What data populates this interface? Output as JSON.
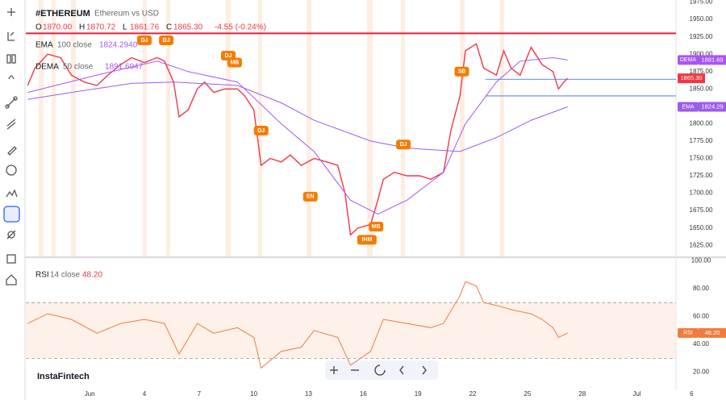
{
  "watermark": "InstaFintech",
  "chart_data": [
    {
      "type": "line",
      "title": "#ETHEREUM",
      "subtitle": "Ethereum vs USD",
      "ohlc": [
        {
          "key": "O",
          "value": "1870.00"
        },
        {
          "key": "H",
          "value": "1870.72"
        },
        {
          "key": "L",
          "value": "1861.76"
        },
        {
          "key": "C",
          "value": "1865.30"
        }
      ],
      "change": "-4.55 (-0.24%)",
      "xlim": [
        -2.5,
        35.0
      ],
      "ylim": [
        1609,
        1978
      ],
      "yticks": [
        {
          "value": 1625,
          "label": "1625.00"
        },
        {
          "value": 1650,
          "label": "1650.00"
        },
        {
          "value": 1675,
          "label": "1675.00"
        },
        {
          "value": 1700,
          "label": "1700.00"
        },
        {
          "value": 1725,
          "label": "1725.00"
        },
        {
          "value": 1750,
          "label": "1750.00"
        },
        {
          "value": 1775,
          "label": "1775.00"
        },
        {
          "value": 1800,
          "label": "1800.00"
        },
        {
          "value": 1825,
          "label": "1825.00"
        },
        {
          "value": 1850,
          "label": "1850.00"
        },
        {
          "value": 1875,
          "label": "1875.00"
        },
        {
          "value": 1900,
          "label": "1900.00"
        },
        {
          "value": 1925,
          "label": "1925.00"
        },
        {
          "value": 1950,
          "label": "1950.00"
        },
        {
          "value": 1975,
          "label": "1975.00"
        }
      ],
      "series": [
        {
          "color": "#f23645",
          "last_label": "1865.30",
          "x": [
            -2.4,
            -2.0,
            -1.3,
            -0.6,
            0.0,
            0.7,
            1.4,
            2.0,
            2.7,
            3.3,
            4.0,
            4.7,
            5.1,
            5.6,
            5.9,
            6.4,
            6.9,
            7.3,
            7.8,
            8.4,
            9.1,
            9.5,
            10.0,
            10.4,
            10.9,
            11.5,
            12.0,
            12.6,
            13.3,
            14.0,
            14.6,
            15.0,
            15.3,
            15.7,
            16.4,
            16.8,
            17.1,
            17.7,
            18.4,
            19.1,
            19.7,
            20.4,
            20.8,
            21.3,
            21.6,
            22.2,
            22.6,
            23.3,
            23.7,
            24.1,
            24.6,
            25.2,
            25.8,
            26.4,
            26.7,
            27.0,
            27.2
          ],
          "values": [
            1855,
            1880,
            1900,
            1895,
            1870,
            1860,
            1855,
            1870,
            1885,
            1895,
            1888,
            1895,
            1890,
            1860,
            1810,
            1820,
            1850,
            1860,
            1845,
            1850,
            1850,
            1840,
            1820,
            1740,
            1750,
            1745,
            1755,
            1740,
            1750,
            1745,
            1740,
            1700,
            1640,
            1650,
            1655,
            1690,
            1720,
            1730,
            1725,
            1725,
            1720,
            1730,
            1790,
            1840,
            1905,
            1915,
            1880,
            1870,
            1905,
            1880,
            1870,
            1910,
            1885,
            1875,
            1850,
            1860,
            1865.3
          ]
        },
        {
          "name": "EMA",
          "params": "100 close",
          "last_label": "1824.2940",
          "badge": "1824.29",
          "color": "#9c5de8",
          "x": [
            -2.4,
            0.0,
            3.3,
            5.6,
            9.1,
            11.5,
            13.3,
            16.4,
            18.4,
            21.3,
            23.3,
            25.2,
            27.2
          ],
          "values": [
            1835,
            1845,
            1858,
            1860,
            1855,
            1830,
            1805,
            1775,
            1765,
            1760,
            1780,
            1805,
            1824.29
          ]
        },
        {
          "name": "DEMA",
          "params": "50 close",
          "last_label": "1891.6947",
          "badge": "1891.69",
          "color": "#a855f7",
          "x": [
            -2.4,
            1.4,
            4.7,
            6.4,
            9.1,
            11.5,
            13.3,
            15.3,
            16.8,
            18.4,
            20.4,
            21.6,
            23.3,
            24.6,
            26.4,
            27.2
          ],
          "values": [
            1845,
            1870,
            1890,
            1875,
            1860,
            1800,
            1760,
            1690,
            1670,
            1690,
            1730,
            1800,
            1860,
            1890,
            1895,
            1891.69
          ]
        }
      ],
      "levels": [
        {
          "value": 1930,
          "color": "#e0203a"
        },
        {
          "value": 1864,
          "color": "#2962ff"
        },
        {
          "value": 1840,
          "color": "#2962ff"
        }
      ],
      "events": [
        {
          "label": "DJ",
          "x": 4.0,
          "y": 1920
        },
        {
          "label": "DJ",
          "x": 5.2,
          "y": 1920
        },
        {
          "label": "DJ",
          "x": 8.6,
          "y": 1898
        },
        {
          "label": "MB",
          "x": 8.95,
          "y": 1888
        },
        {
          "label": "DJ",
          "x": 10.4,
          "y": 1790
        },
        {
          "label": "EN",
          "x": 13.1,
          "y": 1695
        },
        {
          "label": "DJ",
          "x": 18.2,
          "y": 1770
        },
        {
          "label": "MB",
          "x": 16.7,
          "y": 1652
        },
        {
          "label": "IHM",
          "x": 16.2,
          "y": 1633
        },
        {
          "label": "SB",
          "x": 21.4,
          "y": 1875
        }
      ]
    },
    {
      "type": "line",
      "title": "RSI",
      "params": "14 close",
      "last_label": "48.20",
      "badge": "48.20",
      "color": "#f07b3f",
      "xlim": [
        -2.5,
        35.0
      ],
      "ylim": [
        7,
        102
      ],
      "yticks": [
        {
          "value": 20,
          "label": "20.00"
        },
        {
          "value": 40,
          "label": "40.00"
        },
        {
          "value": 60,
          "label": "60.00"
        },
        {
          "value": 80,
          "label": "80.00"
        },
        {
          "value": 100,
          "label": "100.00"
        }
      ],
      "bands": [
        30,
        70
      ],
      "xticks": [
        {
          "value": 1,
          "label": "Jun"
        },
        4,
        7,
        10,
        13,
        16,
        19,
        22,
        25,
        28,
        {
          "value": 31,
          "label": "Jul"
        },
        {
          "value": 34,
          "label": "6"
        }
      ],
      "x": [
        -2.4,
        -1.3,
        0.0,
        1.4,
        2.7,
        4.0,
        5.1,
        5.9,
        6.9,
        7.8,
        9.1,
        10.0,
        10.4,
        11.5,
        12.6,
        13.3,
        14.6,
        15.3,
        16.4,
        17.1,
        18.4,
        19.7,
        20.4,
        21.3,
        21.6,
        22.2,
        22.6,
        23.3,
        24.1,
        25.2,
        25.8,
        26.4,
        26.7,
        27.2
      ],
      "values": [
        55,
        62,
        58,
        48,
        55,
        58,
        55,
        33,
        55,
        48,
        52,
        45,
        23,
        35,
        38,
        50,
        45,
        25,
        35,
        58,
        55,
        52,
        55,
        75,
        85,
        82,
        70,
        68,
        65,
        62,
        58,
        52,
        45,
        48.2
      ]
    }
  ]
}
